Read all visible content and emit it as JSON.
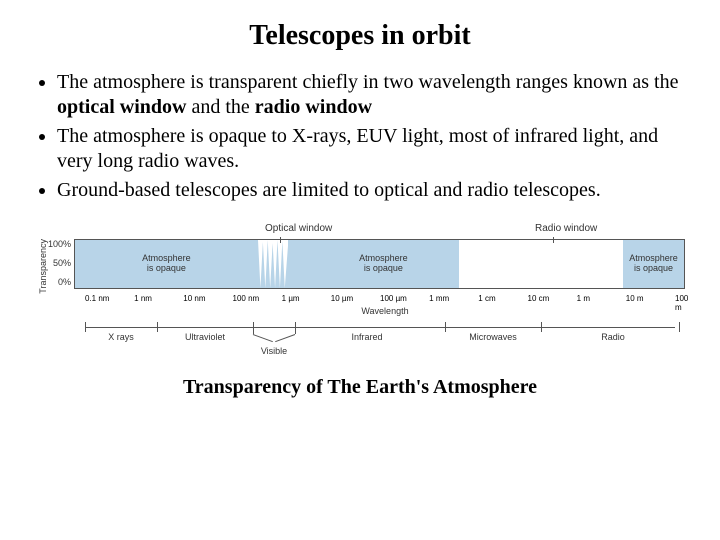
{
  "title": "Telescopes in orbit",
  "bullets": [
    "The atmosphere is transparent chiefly in two wavelength ranges known as the <b>optical window</b> and the <b>radio window</b>",
    "The atmosphere is opaque to X-rays, EUV light, most of infrared light, and very long radio waves.",
    "Ground-based telescopes are limited to optical and radio telescopes."
  ],
  "caption": "Transparency of The Earth's Atmosphere",
  "chart": {
    "top_labels": {
      "optical": "Optical window",
      "radio": "Radio window"
    },
    "y_title": "Transparency",
    "y_ticks": [
      "100%",
      "50%",
      "0%"
    ],
    "x_title": "Wavelength",
    "x_ticks": [
      "0.1 nm",
      "1 nm",
      "10 nm",
      "100 nm",
      "1 µm",
      "10 µm",
      "100 µm",
      "1 mm",
      "1 cm",
      "10 cm",
      "1 m",
      "10 m",
      "100 m"
    ],
    "opaque_label": "Atmosphere is opaque",
    "bands": [
      "X rays",
      "Ultraviolet",
      "Visible",
      "Infrared",
      "Microwaves",
      "Radio"
    ],
    "colors": {
      "opaque_fill": "#b8d4e8",
      "border": "#555555",
      "text": "#333333"
    },
    "optical_window_pct": [
      30,
      35
    ],
    "radio_window_pct": [
      63,
      90
    ],
    "opaque_regions_pct": [
      [
        0,
        30
      ],
      [
        35,
        63
      ],
      [
        90,
        100
      ]
    ],
    "band_ticks_pct": [
      0,
      12,
      28,
      35,
      60,
      76,
      100
    ]
  }
}
